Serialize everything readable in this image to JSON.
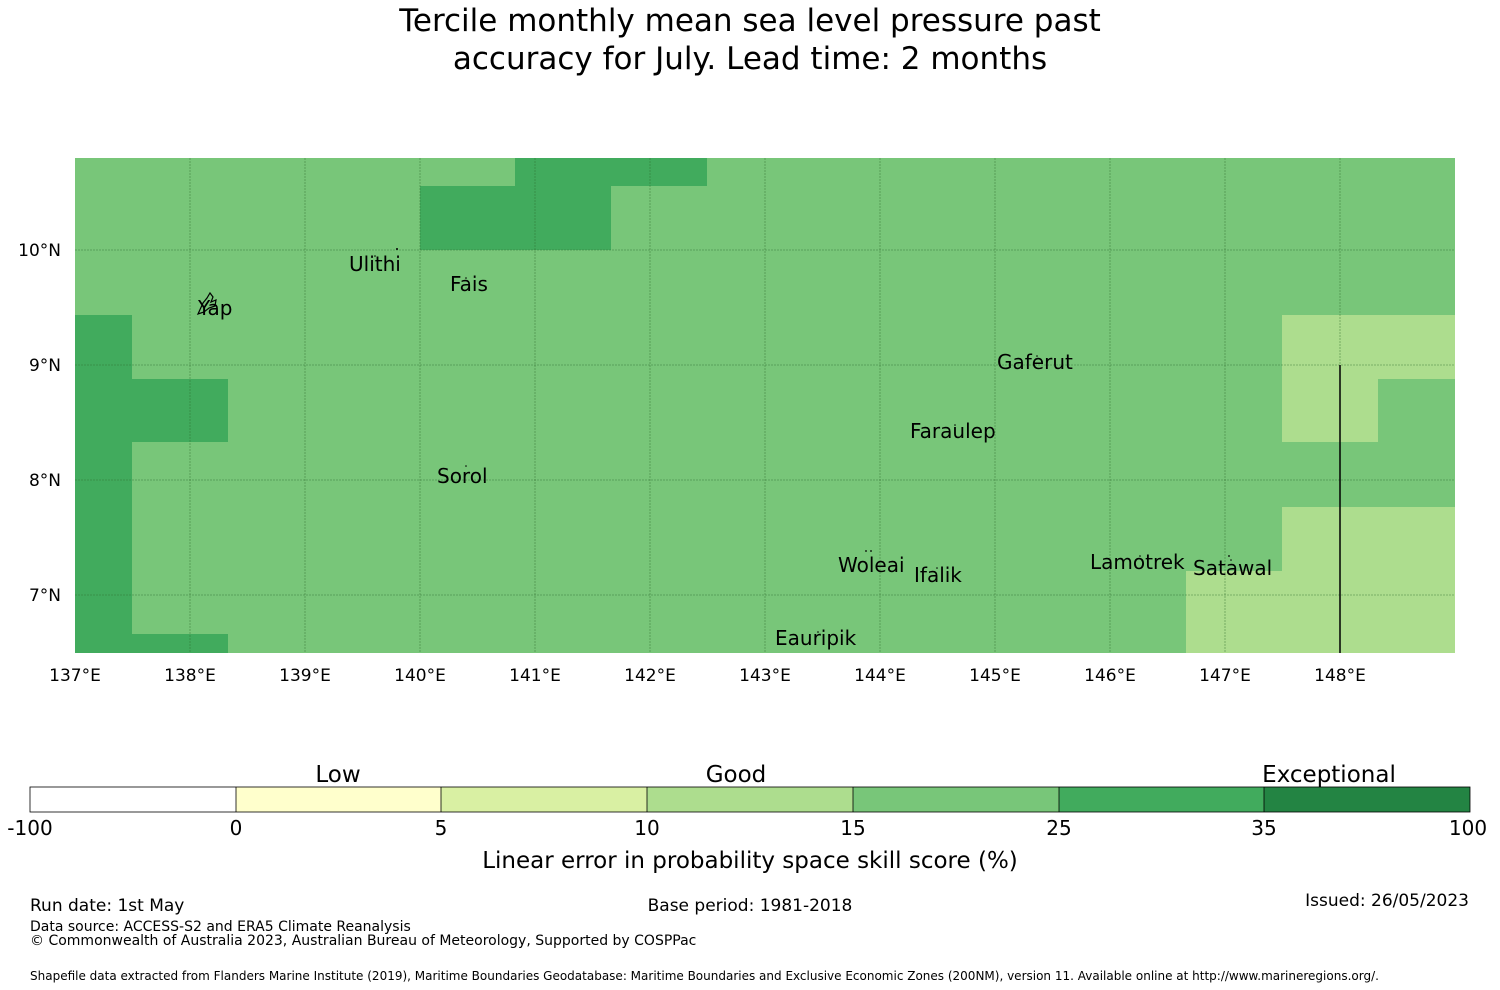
{
  "title_line1": "Tercile monthly mean sea level pressure past",
  "title_line2": "accuracy for July. Lead time: 2 months",
  "map": {
    "lat_labels": [
      "10°N",
      "9°N",
      "8°N",
      "7°N"
    ],
    "lon_labels": [
      "137°E",
      "138°E",
      "139°E",
      "140°E",
      "141°E",
      "142°E",
      "143°E",
      "144°E",
      "145°E",
      "146°E",
      "147°E",
      "148°E"
    ],
    "places": [
      {
        "name": "Ulithi",
        "lon": 139.6,
        "lat": 9.87
      },
      {
        "name": "Fais",
        "lon": 140.45,
        "lat": 9.7
      },
      {
        "name": "Yap",
        "lon": 138.2,
        "lat": 9.5
      },
      {
        "name": "Gaferut",
        "lon": 145.35,
        "lat": 8.98
      },
      {
        "name": "Faraulep",
        "lon": 144.65,
        "lat": 8.4
      },
      {
        "name": "Sorol",
        "lon": 140.38,
        "lat": 8.01
      },
      {
        "name": "Woleai",
        "lon": 143.9,
        "lat": 7.25
      },
      {
        "name": "Ifalik",
        "lon": 144.5,
        "lat": 7.15
      },
      {
        "name": "Lamotrek",
        "lon": 146.25,
        "lat": 7.27
      },
      {
        "name": "Satawal",
        "lon": 147.08,
        "lat": 7.21
      },
      {
        "name": "Eauripik",
        "lon": 143.45,
        "lat": 6.6
      }
    ],
    "colors": {
      "c15_25": "#78c679",
      "c25_35": "#41ab5d",
      "c10_15": "#addd8e"
    }
  },
  "colorbar": {
    "categories": [
      "Low",
      "Good",
      "Exceptional"
    ],
    "ticks": [
      "-100",
      "0",
      "5",
      "10",
      "15",
      "25",
      "35",
      "100"
    ],
    "bins": [
      {
        "range": "-100 to 0",
        "color": "#ffffff"
      },
      {
        "range": "0 to 5",
        "color": "#ffffcc"
      },
      {
        "range": "5 to 10",
        "color": "#d9f0a3"
      },
      {
        "range": "10 to 15",
        "color": "#addd8e"
      },
      {
        "range": "15 to 25",
        "color": "#78c679"
      },
      {
        "range": "25 to 35",
        "color": "#41ab5d"
      },
      {
        "range": "35 to 100",
        "color": "#238443"
      }
    ],
    "label": "Linear error in probability space skill score (%)"
  },
  "footer": {
    "run_date": "Run date: 1st May",
    "base_period": "Base period: 1981-2018",
    "issued": "Issued: 26/05/2023",
    "data_source": "Data source: ACCESS-S2 and ERA5 Climate Reanalysis",
    "copyright": "© Commonwealth of Australia 2023, Australian Bureau of Meteorology, Supported by COSPPac",
    "shapefile": "Shapefile data extracted from Flanders Marine Institute (2019), Maritime Boundaries Geodatabase: Maritime Boundaries and Exclusive Economic Zones (200NM), version 11. Available online at http://www.marineregions.org/."
  }
}
